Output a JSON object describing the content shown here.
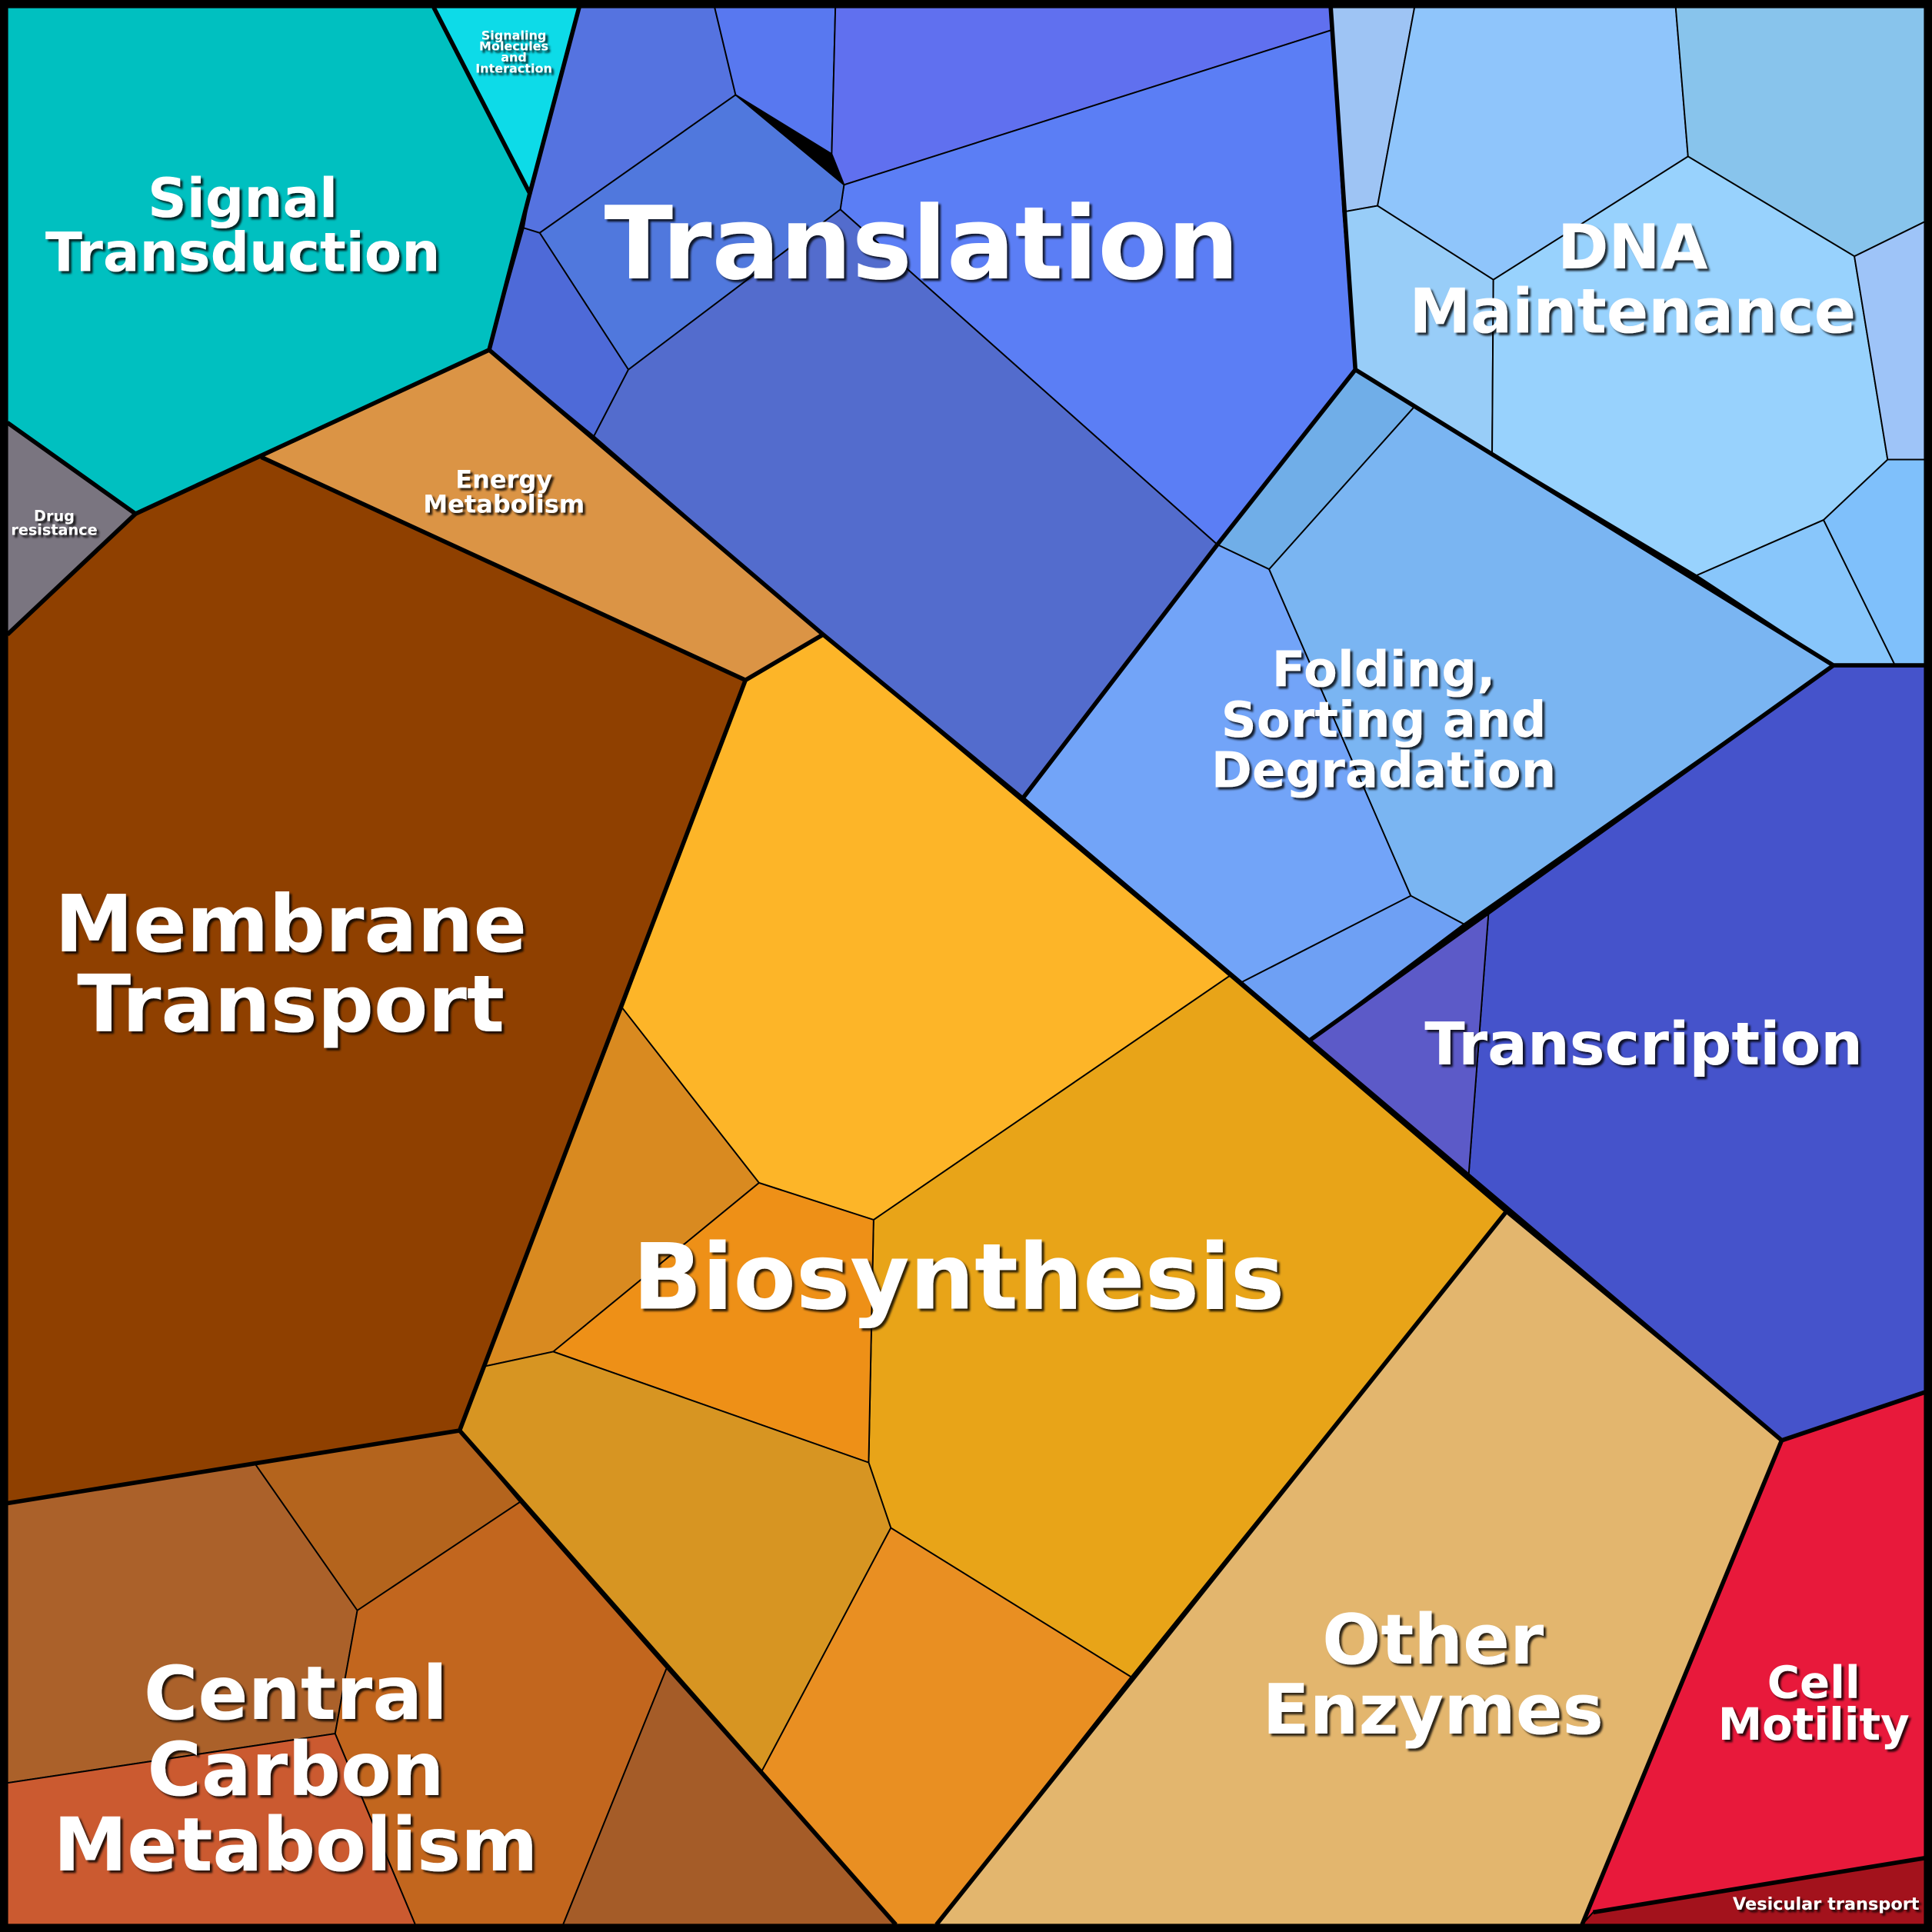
{
  "regions": [
    {
      "lines": [
        "Signal",
        "Transduction"
      ]
    },
    {
      "lines": [
        "Signaling",
        "Molecules",
        "and",
        "Interaction"
      ]
    },
    {
      "lines": [
        "Drug",
        "resistance"
      ]
    },
    {
      "lines": [
        "Translation"
      ]
    },
    {
      "lines": [
        "Energy",
        "Metabolism"
      ]
    },
    {
      "lines": [
        "DNA",
        "Maintenance"
      ]
    },
    {
      "lines": [
        "Folding,",
        "Sorting and",
        "Degradation"
      ]
    },
    {
      "lines": [
        "Membrane",
        "Transport"
      ]
    },
    {
      "lines": [
        "Transcription"
      ]
    },
    {
      "lines": [
        "Biosynthesis"
      ]
    },
    {
      "lines": [
        "Other",
        "Enzymes"
      ]
    },
    {
      "lines": [
        "Cell",
        "Motility"
      ]
    },
    {
      "lines": [
        "Central",
        "Carbon",
        "Metabolism"
      ]
    },
    {
      "lines": [
        "Vesicular transport"
      ]
    }
  ]
}
